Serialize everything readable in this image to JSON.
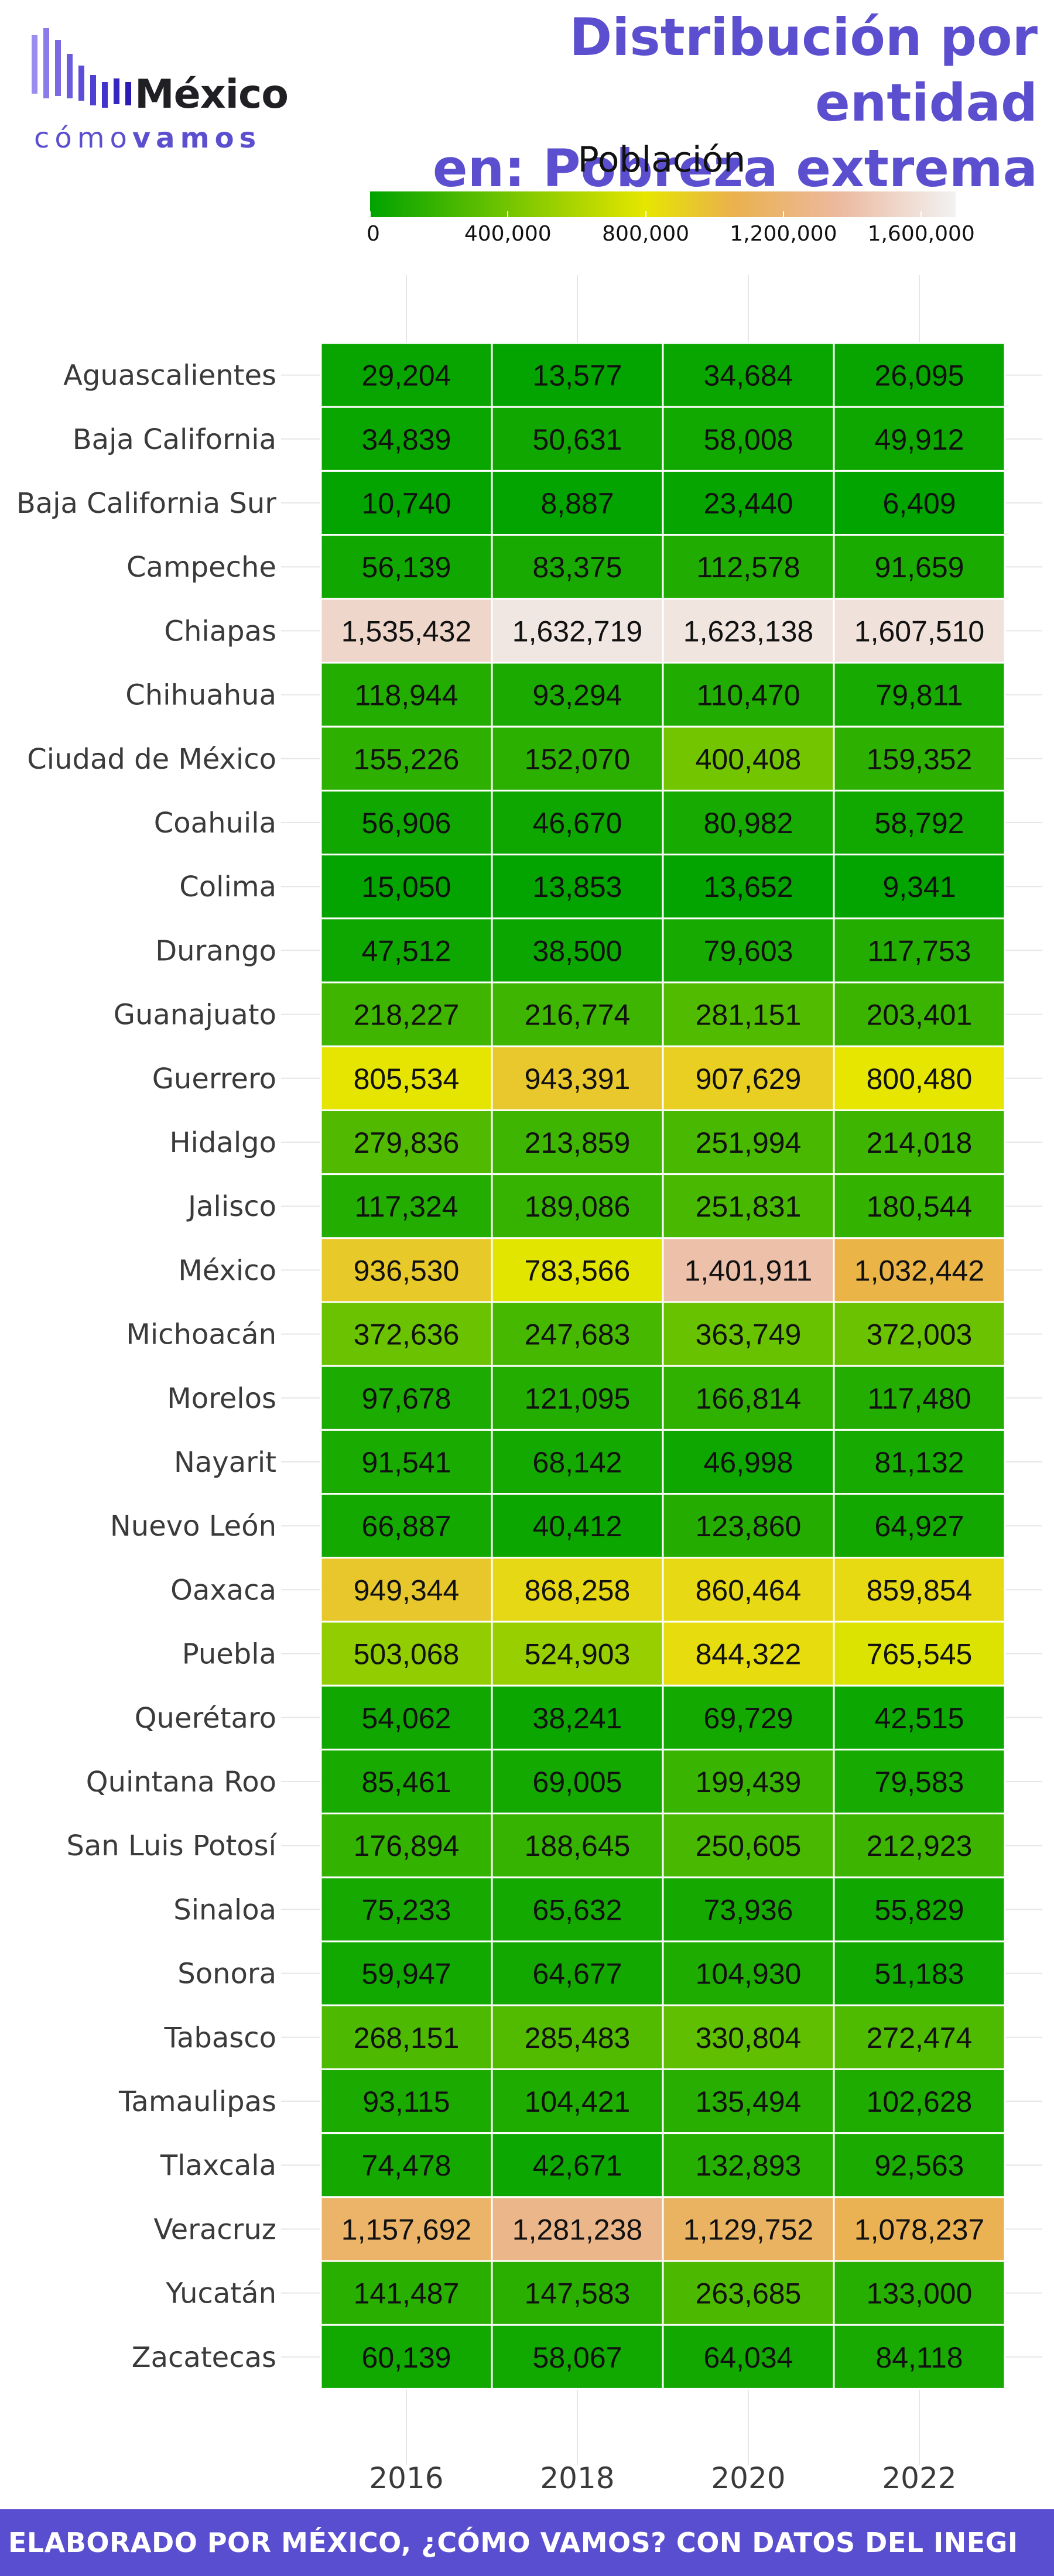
{
  "brand": {
    "word": "México",
    "sub_light": "cómo",
    "sub_bold": "vamos",
    "accent": "#5b4fcf"
  },
  "title_line1": "Distribución por entidad",
  "title_line2": "en: Pobreza extrema",
  "footer_text": "ELABORADO POR MÉXICO, ¿CÓMO VAMOS? CON DATOS DEL INEGI",
  "chart_data": {
    "type": "heatmap",
    "legend": {
      "title": "Población",
      "ticks": [
        0,
        400000,
        800000,
        1200000,
        1600000
      ],
      "tick_labels": [
        "0",
        "400,000",
        "800,000",
        "1,200,000",
        "1,600,000"
      ],
      "range": [
        0,
        1700000
      ],
      "colors": [
        "#00a300",
        "#e6e600",
        "#eab14d",
        "#ecb99f",
        "#f2f2f2"
      ],
      "color_stops": [
        0,
        0.47,
        0.62,
        0.8,
        1.0
      ]
    },
    "columns": [
      "2016",
      "2018",
      "2020",
      "2022"
    ],
    "rows": [
      {
        "label": "Aguascalientes",
        "values": [
          29204,
          13577,
          34684,
          26095
        ]
      },
      {
        "label": "Baja California",
        "values": [
          34839,
          50631,
          58008,
          49912
        ]
      },
      {
        "label": "Baja California Sur",
        "values": [
          10740,
          8887,
          23440,
          6409
        ]
      },
      {
        "label": "Campeche",
        "values": [
          56139,
          83375,
          112578,
          91659
        ]
      },
      {
        "label": "Chiapas",
        "values": [
          1535432,
          1632719,
          1623138,
          1607510
        ]
      },
      {
        "label": "Chihuahua",
        "values": [
          118944,
          93294,
          110470,
          79811
        ]
      },
      {
        "label": "Ciudad de México",
        "values": [
          155226,
          152070,
          400408,
          159352
        ]
      },
      {
        "label": "Coahuila",
        "values": [
          56906,
          46670,
          80982,
          58792
        ]
      },
      {
        "label": "Colima",
        "values": [
          15050,
          13853,
          13652,
          9341
        ]
      },
      {
        "label": "Durango",
        "values": [
          47512,
          38500,
          79603,
          117753
        ]
      },
      {
        "label": "Guanajuato",
        "values": [
          218227,
          216774,
          281151,
          203401
        ]
      },
      {
        "label": "Guerrero",
        "values": [
          805534,
          943391,
          907629,
          800480
        ]
      },
      {
        "label": "Hidalgo",
        "values": [
          279836,
          213859,
          251994,
          214018
        ]
      },
      {
        "label": "Jalisco",
        "values": [
          117324,
          189086,
          251831,
          180544
        ]
      },
      {
        "label": "México",
        "values": [
          936530,
          783566,
          1401911,
          1032442
        ]
      },
      {
        "label": "Michoacán",
        "values": [
          372636,
          247683,
          363749,
          372003
        ]
      },
      {
        "label": "Morelos",
        "values": [
          97678,
          121095,
          166814,
          117480
        ]
      },
      {
        "label": "Nayarit",
        "values": [
          91541,
          68142,
          46998,
          81132
        ]
      },
      {
        "label": "Nuevo León",
        "values": [
          66887,
          40412,
          123860,
          64927
        ]
      },
      {
        "label": "Oaxaca",
        "values": [
          949344,
          868258,
          860464,
          859854
        ]
      },
      {
        "label": "Puebla",
        "values": [
          503068,
          524903,
          844322,
          765545
        ]
      },
      {
        "label": "Querétaro",
        "values": [
          54062,
          38241,
          69729,
          42515
        ]
      },
      {
        "label": "Quintana Roo",
        "values": [
          85461,
          69005,
          199439,
          79583
        ]
      },
      {
        "label": "San Luis Potosí",
        "values": [
          176894,
          188645,
          250605,
          212923
        ]
      },
      {
        "label": "Sinaloa",
        "values": [
          75233,
          65632,
          73936,
          55829
        ]
      },
      {
        "label": "Sonora",
        "values": [
          59947,
          64677,
          104930,
          51183
        ]
      },
      {
        "label": "Tabasco",
        "values": [
          268151,
          285483,
          330804,
          272474
        ]
      },
      {
        "label": "Tamaulipas",
        "values": [
          93115,
          104421,
          135494,
          102628
        ]
      },
      {
        "label": "Tlaxcala",
        "values": [
          74478,
          42671,
          132893,
          92563
        ]
      },
      {
        "label": "Veracruz",
        "values": [
          1157692,
          1281238,
          1129752,
          1078237
        ]
      },
      {
        "label": "Yucatán",
        "values": [
          141487,
          147583,
          263685,
          133000
        ]
      },
      {
        "label": "Zacatecas",
        "values": [
          60139,
          58067,
          64034,
          84118
        ]
      }
    ]
  }
}
